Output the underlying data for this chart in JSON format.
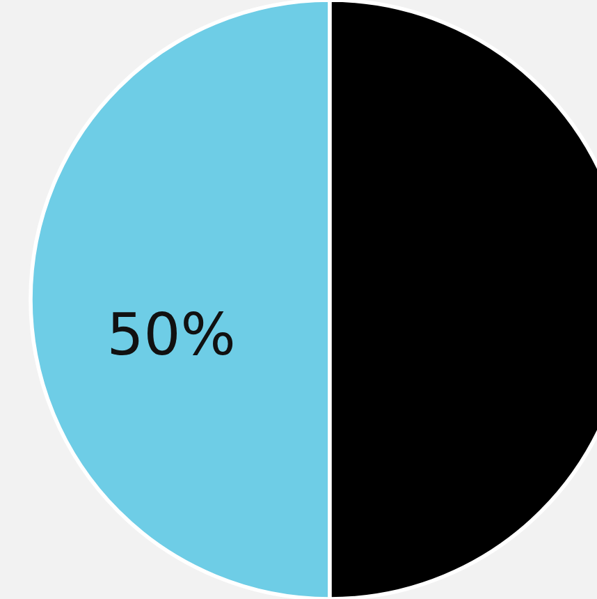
{
  "chart_data": {
    "type": "pie",
    "categories": [
      null,
      null
    ],
    "values": [
      50,
      50
    ],
    "colors": [
      "#6ecde6",
      "#000000"
    ],
    "value_labels": [
      "50%",
      null
    ]
  }
}
